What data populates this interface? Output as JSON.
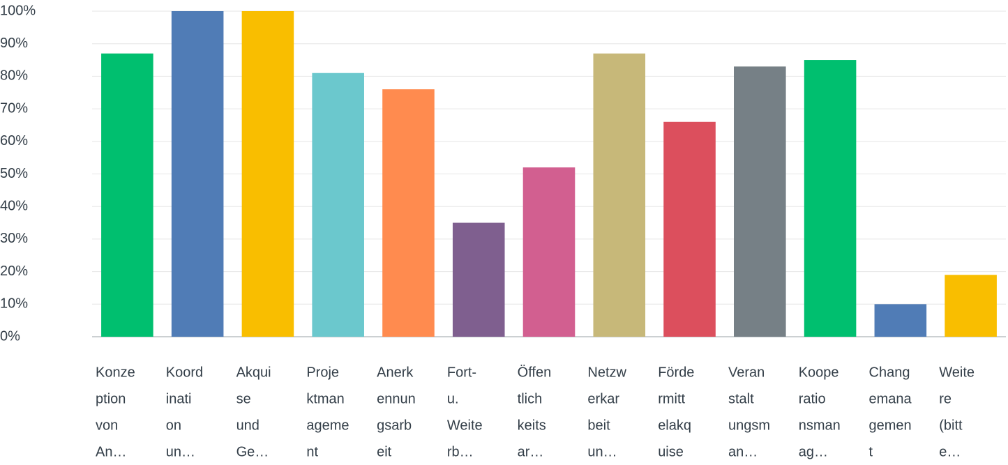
{
  "chart_data": {
    "type": "bar",
    "categories": [
      [
        "Konze",
        "ption",
        "von",
        "An…"
      ],
      [
        "Koord",
        "inati",
        "on",
        "un…"
      ],
      [
        "Akqui",
        "se",
        "und",
        "Ge…"
      ],
      [
        "Proje",
        "ktman",
        "ageme",
        "nt"
      ],
      [
        "Anerk",
        "ennun",
        "gsarb",
        "eit"
      ],
      [
        "Fort-",
        "u.",
        "Weite",
        "rb…"
      ],
      [
        "Öffen",
        "tlich",
        "keits",
        "ar…"
      ],
      [
        "Netzw",
        "erkar",
        "beit",
        "un…"
      ],
      [
        "Förde",
        "rmitt",
        "elakq",
        "uise"
      ],
      [
        "Veran",
        "stalt",
        "ungsm",
        "an…"
      ],
      [
        "Koope",
        "ratio",
        "nsman",
        "ag…"
      ],
      [
        "Chang",
        "emana",
        "gemen",
        "t"
      ],
      [
        "Weite",
        "re",
        "(bitt",
        "e…"
      ]
    ],
    "values": [
      87,
      100,
      100,
      81,
      76,
      35,
      52,
      87,
      66,
      83,
      85,
      10,
      19
    ],
    "colors": [
      "#00bf6f",
      "#507cb6",
      "#f9be00",
      "#6bc8cd",
      "#ff8b4f",
      "#7f5f8f",
      "#d25f90",
      "#c7b879",
      "#dc4f5d",
      "#768086",
      "#00bf6f",
      "#507cb6",
      "#f9be00"
    ],
    "ylim": [
      0,
      100
    ],
    "yticks": [
      {
        "value": 0,
        "label": "0%"
      },
      {
        "value": 10,
        "label": "10%"
      },
      {
        "value": 20,
        "label": "20%"
      },
      {
        "value": 30,
        "label": "30%"
      },
      {
        "value": 40,
        "label": "40%"
      },
      {
        "value": 50,
        "label": "50%"
      },
      {
        "value": 60,
        "label": "60%"
      },
      {
        "value": 70,
        "label": "70%"
      },
      {
        "value": 80,
        "label": "80%"
      },
      {
        "value": 90,
        "label": "90%"
      },
      {
        "value": 100,
        "label": "100%"
      }
    ],
    "grid": true
  }
}
